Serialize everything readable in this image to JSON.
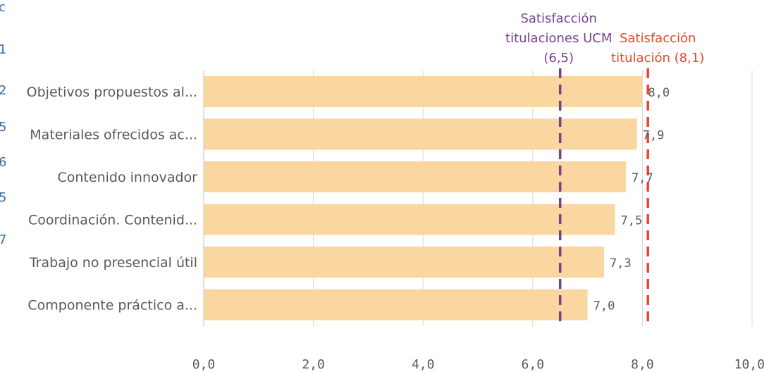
{
  "chart_data": {
    "type": "bar",
    "orientation": "horizontal",
    "categories": [
      "Objetivos propuestos al...",
      "Materiales ofrecidos ac...",
      "Contenido innovador",
      "Coordinación. Contenid...",
      "Trabajo no presencial útil",
      "Componente práctico a..."
    ],
    "values": [
      8.0,
      7.9,
      7.7,
      7.5,
      7.3,
      7.0
    ],
    "value_labels": [
      "8,0",
      "7,9",
      "7,7",
      "7,5",
      "7,3",
      "7,0"
    ],
    "xlim": [
      0,
      10
    ],
    "ticks": [
      0,
      2,
      4,
      6,
      8,
      10
    ],
    "tick_labels": [
      "0,0",
      "2,0",
      "4,0",
      "6,0",
      "8,0",
      "10,0"
    ],
    "grid": true,
    "bar_color": "#fad7a0",
    "reference_lines": [
      {
        "value": 6.5,
        "label_lines": [
          "Satisfacción",
          "titulaciones UCM",
          "(6,5)"
        ],
        "color": "#7b3f8c"
      },
      {
        "value": 8.1,
        "label_lines": [
          "Satisfacción",
          "titulación (8,1)"
        ],
        "color": "#e8462a"
      }
    ]
  },
  "left_edge_fragments": [
    "c",
    "1",
    "2",
    "5",
    "6",
    "5",
    "7"
  ]
}
